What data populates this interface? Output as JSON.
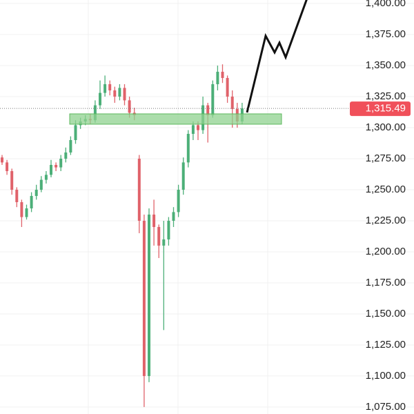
{
  "chart_data": {
    "type": "candlestick",
    "up_color": "#4caf78",
    "down_color": "#e0626a",
    "grid": true,
    "ylim": [
      1069.4,
      1402.8
    ],
    "yticks": [
      {
        "value": 1400,
        "label": "1,400.00"
      },
      {
        "value": 1375,
        "label": "1,375.00"
      },
      {
        "value": 1350,
        "label": "1,350.00"
      },
      {
        "value": 1325,
        "label": "1,325.00"
      },
      {
        "value": 1300,
        "label": "1,300.00"
      },
      {
        "value": 1275,
        "label": "1,275.00"
      },
      {
        "value": 1250,
        "label": "1,250.00"
      },
      {
        "value": 1225,
        "label": "1,225.00"
      },
      {
        "value": 1200,
        "label": "1,200.00"
      },
      {
        "value": 1175,
        "label": "1,175.00"
      },
      {
        "value": 1150,
        "label": "1,150.00"
      },
      {
        "value": 1125,
        "label": "1,125.00"
      },
      {
        "value": 1100,
        "label": "1,100.00"
      },
      {
        "value": 1075,
        "label": "1,075.00"
      }
    ],
    "last_price": {
      "value": 1315.49,
      "label": "1,315.49",
      "color": "#f0505a"
    },
    "open": [
      1276,
      1272,
      1265,
      1250,
      1240,
      1228,
      1235,
      1245,
      1250,
      1258,
      1262,
      1270,
      1268,
      1275,
      1280,
      1290,
      1302,
      1305,
      1307,
      1306,
      1318,
      1328,
      1335,
      1330,
      1325,
      1332,
      1322,
      1312,
      1275,
      1225,
      1100,
      1230,
      1220,
      1205,
      1210,
      1225,
      1232,
      1250,
      1272,
      1295,
      1302,
      1298,
      1318,
      1310,
      1335,
      1345,
      1340,
      1325,
      1315,
      1305
    ],
    "high": [
      1278,
      1274,
      1267,
      1252,
      1242,
      1238,
      1248,
      1254,
      1261,
      1265,
      1274,
      1272,
      1278,
      1284,
      1293,
      1306,
      1308,
      1310,
      1311,
      1322,
      1338,
      1342,
      1338,
      1333,
      1335,
      1335,
      1325,
      1316,
      1278,
      1230,
      1235,
      1242,
      1222,
      1225,
      1228,
      1236,
      1254,
      1276,
      1298,
      1305,
      1305,
      1325,
      1320,
      1338,
      1350,
      1351,
      1342,
      1330,
      1320,
      1320
    ],
    "low": [
      1270,
      1262,
      1246,
      1236,
      1220,
      1226,
      1232,
      1242,
      1248,
      1255,
      1260,
      1265,
      1265,
      1272,
      1278,
      1287,
      1299,
      1302,
      1303,
      1304,
      1315,
      1325,
      1326,
      1320,
      1322,
      1318,
      1308,
      1306,
      1215,
      1075,
      1095,
      1205,
      1195,
      1137,
      1205,
      1220,
      1228,
      1246,
      1268,
      1290,
      1290,
      1295,
      1288,
      1308,
      1330,
      1336,
      1320,
      1300,
      1300,
      1303
    ],
    "close": [
      1272,
      1265,
      1250,
      1240,
      1228,
      1235,
      1245,
      1250,
      1258,
      1262,
      1270,
      1268,
      1275,
      1280,
      1290,
      1302,
      1305,
      1307,
      1306,
      1318,
      1328,
      1335,
      1330,
      1325,
      1332,
      1322,
      1312,
      1310,
      1225,
      1100,
      1230,
      1220,
      1205,
      1210,
      1225,
      1232,
      1250,
      1272,
      1295,
      1302,
      1298,
      1318,
      1310,
      1335,
      1345,
      1340,
      1325,
      1315,
      1305,
      1315.49
    ]
  }
}
